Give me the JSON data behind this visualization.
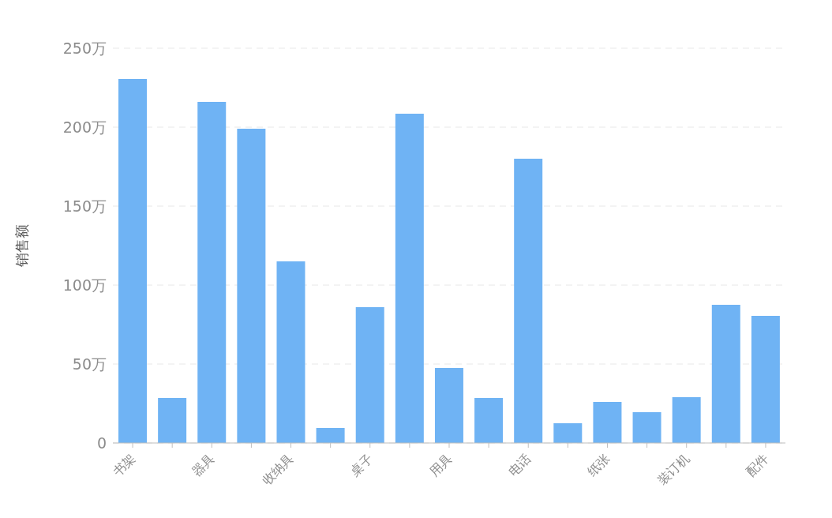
{
  "chart_data": {
    "type": "bar",
    "ylabel": "销售额",
    "categories": [
      "书架",
      null,
      "器具",
      null,
      "收纳具",
      null,
      "桌子",
      null,
      "用具",
      null,
      "电话",
      null,
      "纸张",
      null,
      "装订机",
      null,
      "配件"
    ],
    "values": [
      230.5,
      28.5,
      216,
      199,
      115,
      9.5,
      86,
      208.5,
      47.5,
      28.5,
      180,
      12.5,
      26,
      19.5,
      29,
      87.5,
      80.5
    ],
    "color": "#6fb3f4",
    "ylim": [
      0,
      250
    ],
    "yticks": [
      0,
      {
        "value": 50,
        "label": "50万"
      },
      {
        "value": 100,
        "label": "100万"
      },
      {
        "value": 150,
        "label": "150万"
      },
      {
        "value": 200,
        "label": "200万"
      },
      {
        "value": 250,
        "label": "250万"
      }
    ],
    "grid": "y"
  }
}
